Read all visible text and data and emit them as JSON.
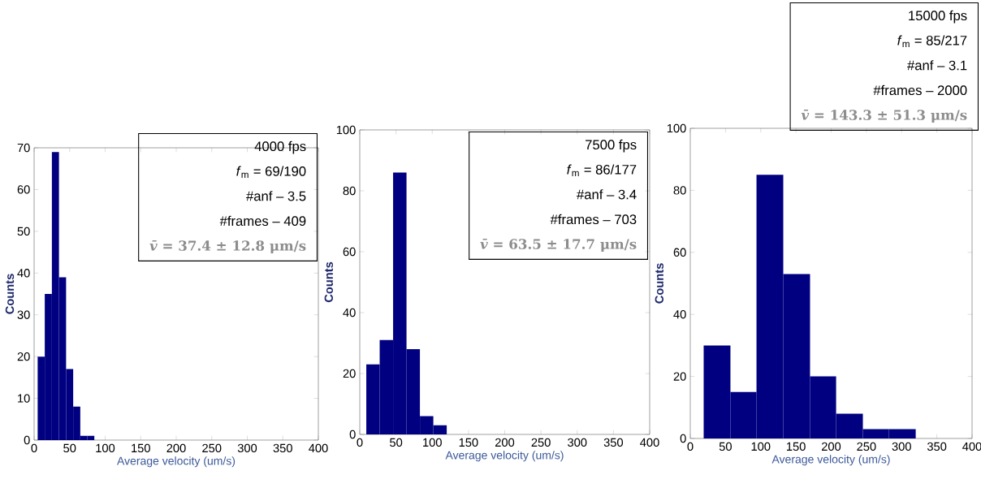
{
  "chart_data": [
    {
      "type": "histogram",
      "bins": [
        5,
        15,
        25,
        35,
        45,
        55,
        65,
        75,
        85
      ],
      "values": [
        20,
        35,
        69,
        39,
        17,
        8,
        1,
        1
      ],
      "color": "#000080",
      "xlim": [
        0,
        400
      ],
      "xticks": [
        0,
        50,
        100,
        150,
        200,
        250,
        300,
        350,
        400
      ],
      "ylim": [
        0,
        70
      ],
      "yticks": [
        0,
        10,
        20,
        30,
        40,
        50,
        60,
        70
      ],
      "xlabel": "Average velocity (um/s)",
      "ylabel": "Counts",
      "annotations": [
        "4000 fps",
        "*f*$_{m}$ = 69/190",
        "#anf – 3.5",
        "#frames – 409",
        "*v̄* = 37.4 ± 12.8 μm/s"
      ]
    },
    {
      "type": "histogram",
      "bins": [
        9,
        27.5,
        46,
        64.5,
        83,
        101.5,
        120
      ],
      "values": [
        23,
        31,
        86,
        28,
        6,
        3
      ],
      "color": "#000080",
      "xlim": [
        0,
        400
      ],
      "xticks": [
        0,
        50,
        100,
        150,
        200,
        250,
        300,
        350,
        400
      ],
      "ylim": [
        0,
        100
      ],
      "yticks": [
        0,
        20,
        40,
        60,
        80,
        100
      ],
      "xlabel": "Average velocity (um/s)",
      "ylabel": "Counts",
      "annotations": [
        "7500 fps",
        "*f*$_{m}$ = 86/177",
        "#anf – 3.4",
        "#frames – 703",
        "*v̄* = 63.5 ± 17.7 μm/s"
      ]
    },
    {
      "type": "histogram",
      "bins": [
        19,
        57,
        94,
        132,
        170,
        207,
        245,
        282,
        320
      ],
      "values": [
        30,
        15,
        85,
        53,
        20,
        8,
        3,
        3
      ],
      "color": "#000080",
      "xlim": [
        0,
        400
      ],
      "xticks": [
        0,
        50,
        100,
        150,
        200,
        250,
        300,
        350,
        400
      ],
      "ylim": [
        0,
        100
      ],
      "yticks": [
        0,
        20,
        40,
        60,
        80,
        100
      ],
      "xlabel": "Average velocity (um/s)",
      "ylabel": "Counts",
      "annotations": [
        "15000 fps",
        "*f*$_{m}$ = 85/217",
        "#anf – 3.1",
        "#frames – 2000",
        "*v̄* = 143.3 ± 51.3 μm/s"
      ]
    }
  ]
}
